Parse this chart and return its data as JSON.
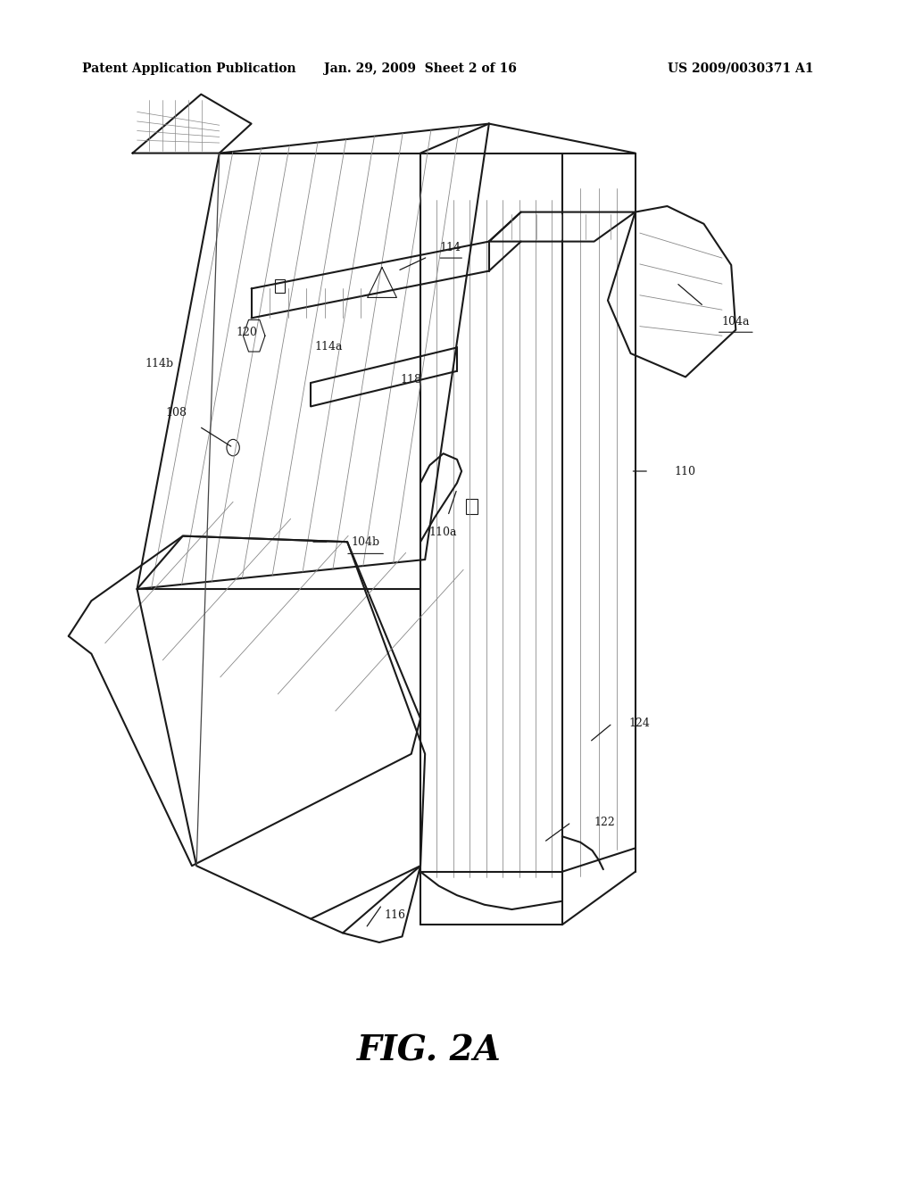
{
  "background_color": "#ffffff",
  "header_left": "Patent Application Publication",
  "header_mid": "Jan. 29, 2009  Sheet 2 of 16",
  "header_right": "US 2009/0030371 A1",
  "figure_label": "FIG. 2A",
  "color_main": "#1a1a1a",
  "color_hatch": "#888888",
  "lw_main": 1.5,
  "lw_thin": 0.8
}
